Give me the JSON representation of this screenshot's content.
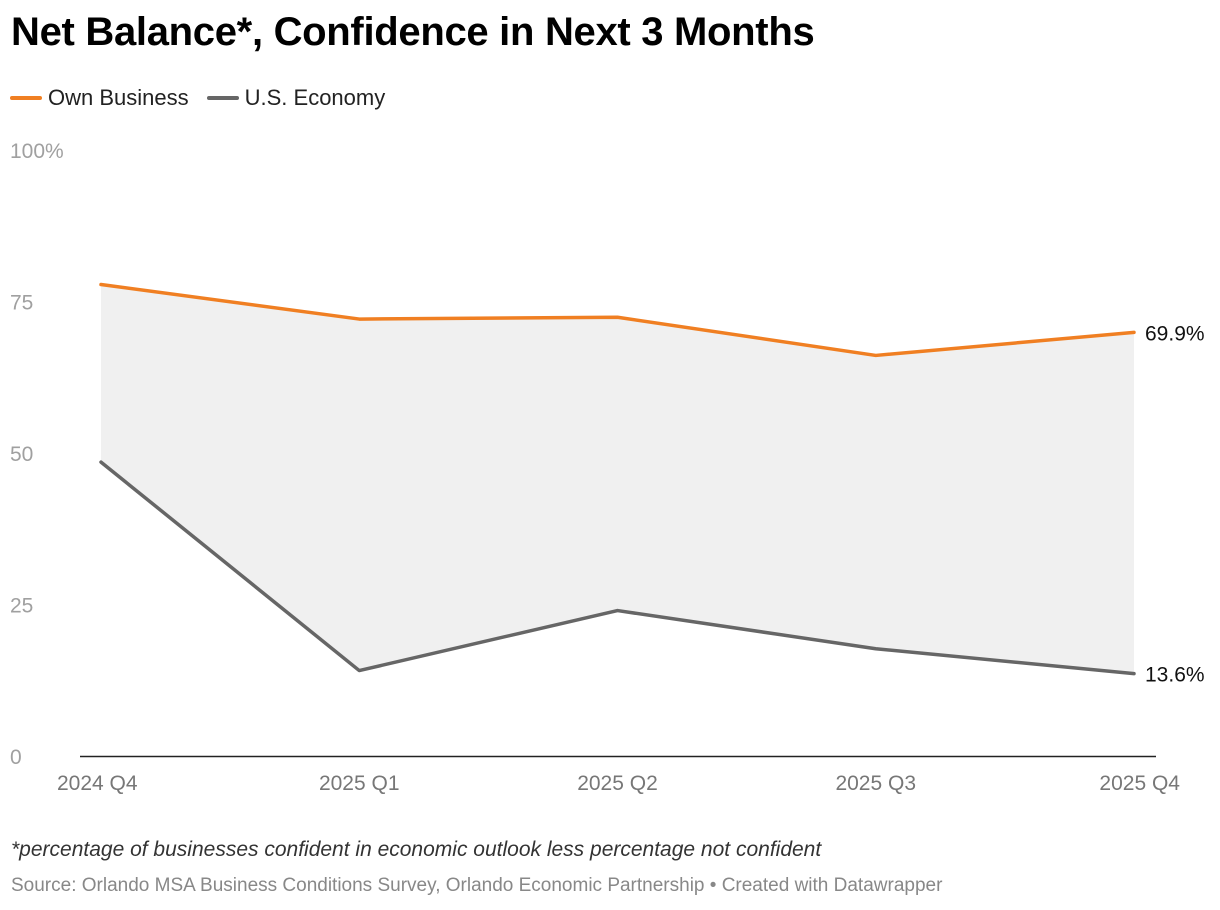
{
  "chart_data": {
    "type": "line",
    "title": "Net Balance*, Confidence in Next 3 Months",
    "categories": [
      "2024 Q4",
      "2025 Q1",
      "2025 Q2",
      "2025 Q3",
      "2025 Q4"
    ],
    "series": [
      {
        "name": "Own Business",
        "values": [
          77.8,
          72.1,
          72.4,
          66.1,
          69.9
        ],
        "color": "#f07f22"
      },
      {
        "name": "U.S. Economy",
        "values": [
          48.5,
          14.1,
          24.0,
          17.7,
          13.6
        ],
        "color": "#666666"
      }
    ],
    "end_labels": [
      "69.9%",
      "13.6%"
    ],
    "yticks": [
      {
        "value": 100,
        "label": "100%"
      },
      {
        "value": 75,
        "label": "75"
      },
      {
        "value": 50,
        "label": "50"
      },
      {
        "value": 25,
        "label": "25"
      },
      {
        "value": 0,
        "label": "0"
      }
    ],
    "ylim": [
      0,
      100
    ],
    "xlabel": "",
    "ylabel": "",
    "area_between_series": true,
    "area_color": "#f0f0f0",
    "tick_color": "#a0a0a0",
    "xtick_color": "#777777",
    "baseline_color": "#222222"
  },
  "footnote": "*percentage of businesses confident in economic outlook less percentage not confident",
  "source": "Source: Orlando MSA Business Conditions Survey, Orlando Economic Partnership • Created with Datawrapper"
}
